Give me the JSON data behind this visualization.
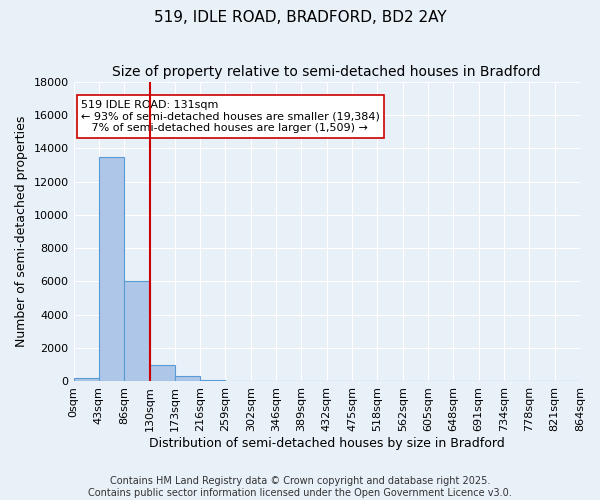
{
  "title": "519, IDLE ROAD, BRADFORD, BD2 2AY",
  "subtitle": "Size of property relative to semi-detached houses in Bradford",
  "xlabel": "Distribution of semi-detached houses by size in Bradford",
  "ylabel": "Number of semi-detached properties",
  "bin_labels": [
    "0sqm",
    "43sqm",
    "86sqm",
    "130sqm",
    "173sqm",
    "216sqm",
    "259sqm",
    "302sqm",
    "346sqm",
    "389sqm",
    "432sqm",
    "475sqm",
    "518sqm",
    "562sqm",
    "605sqm",
    "648sqm",
    "691sqm",
    "734sqm",
    "778sqm",
    "821sqm",
    "864sqm"
  ],
  "bar_values": [
    200,
    13500,
    6000,
    1000,
    350,
    100,
    0,
    0,
    0,
    0,
    0,
    0,
    0,
    0,
    0,
    0,
    0,
    0,
    0,
    0
  ],
  "bar_color": "#aec6e8",
  "bar_edge_color": "#5b9bd5",
  "property_bin_index": 3,
  "vline_color": "#cc0000",
  "annotation_text": "519 IDLE ROAD: 131sqm\n← 93% of semi-detached houses are smaller (19,384)\n   7% of semi-detached houses are larger (1,509) →",
  "annotation_box_color": "#ffffff",
  "annotation_box_edge": "#cc0000",
  "ylim": [
    0,
    18000
  ],
  "yticks": [
    0,
    2000,
    4000,
    6000,
    8000,
    10000,
    12000,
    14000,
    16000,
    18000
  ],
  "footer1": "Contains HM Land Registry data © Crown copyright and database right 2025.",
  "footer2": "Contains public sector information licensed under the Open Government Licence v3.0.",
  "background_color": "#e8f0f8",
  "plot_bg_color": "#e8f0f8",
  "grid_color": "#ffffff",
  "title_fontsize": 11,
  "subtitle_fontsize": 10,
  "axis_label_fontsize": 9,
  "tick_fontsize": 8,
  "annotation_fontsize": 8,
  "footer_fontsize": 7
}
